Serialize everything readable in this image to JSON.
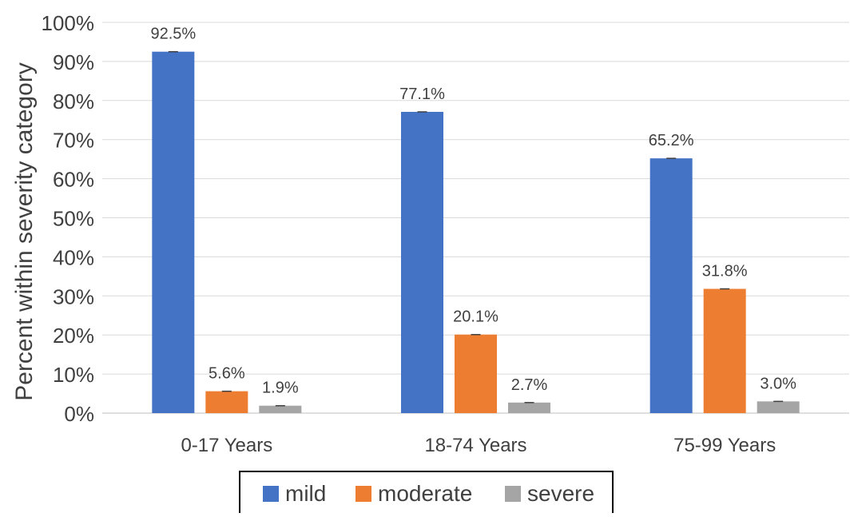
{
  "chart_data": {
    "type": "bar",
    "title": "",
    "ylabel": "Percent within severity category",
    "xlabel": "",
    "ylim": [
      0,
      100
    ],
    "yticks": [
      0,
      10,
      20,
      30,
      40,
      50,
      60,
      70,
      80,
      90,
      100
    ],
    "ytick_labels": [
      "0%",
      "10%",
      "20%",
      "30%",
      "40%",
      "50%",
      "60%",
      "70%",
      "80%",
      "90%",
      "100%"
    ],
    "categories": [
      "0-17 Years",
      "18-74 Years",
      "75-99 Years"
    ],
    "series": [
      {
        "name": "mild",
        "color": "#4472C4",
        "values": [
          92.5,
          77.1,
          65.2
        ],
        "labels": [
          "92.5%",
          "77.1%",
          "65.2%"
        ]
      },
      {
        "name": "moderate",
        "color": "#ED7D31",
        "values": [
          5.6,
          20.1,
          31.8
        ],
        "labels": [
          "5.6%",
          "20.1%",
          "31.8%"
        ]
      },
      {
        "name": "severe",
        "color": "#A5A5A5",
        "values": [
          1.9,
          2.7,
          3.0
        ],
        "labels": [
          "1.9%",
          "2.7%",
          "3.0%"
        ]
      }
    ],
    "error_bars": true,
    "grid": true,
    "legend_position": "bottom"
  }
}
